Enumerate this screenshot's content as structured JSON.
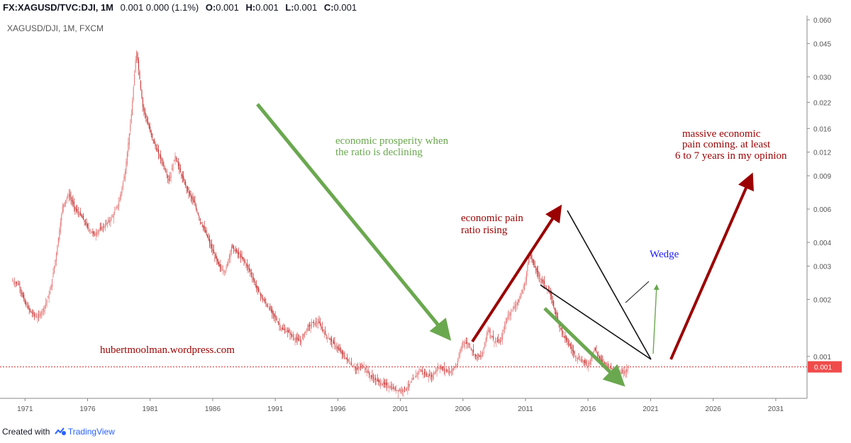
{
  "header": {
    "symbol": "FX:XAGUSD/TVC:DJI, 1M",
    "change": "0.001 0.000 (1.1%)",
    "open_label": "O:",
    "open_value": "0.001",
    "high_label": "H:",
    "high_value": "0.001",
    "low_label": "L:",
    "low_value": "0.001",
    "close_label": "C:",
    "close_value": "0.001"
  },
  "footer": {
    "created_with": "Created with",
    "brand": "TradingView"
  },
  "colors": {
    "candle_up": "#e57373",
    "candle_down": "#c62828",
    "price_line": "#d32f2f",
    "green_arrow": "#6aa84f",
    "red_arrow": "#9b0000",
    "wedge_line": "#111111",
    "wedge_label": "#1a1aff",
    "grid": "#eef0f3",
    "axis": "#888888",
    "axis_text": "#555555",
    "price_tag": "#f04b4b"
  },
  "chart_data": {
    "type": "candlestick",
    "title": "XAGUSD/DJI, 1M, FXCM",
    "scale": "log",
    "ylim": [
      0.0006,
      0.06
    ],
    "xlim": [
      1969.0,
      2033.5
    ],
    "y_ticks": [
      "0.060",
      "0.045",
      "0.030",
      "0.022",
      "0.016",
      "0.012",
      "0.009",
      "0.006",
      "0.004",
      "0.003",
      "0.002",
      "0.001"
    ],
    "x_ticks": [
      "1971",
      "1976",
      "1981",
      "1986",
      "1991",
      "1996",
      "2001",
      "2006",
      "2011",
      "2016",
      "2021",
      "2026",
      "2031"
    ],
    "last_price": "0.001",
    "last_price_value": 0.00088,
    "grid": false,
    "series": [
      {
        "points": [
          [
            1970.0,
            0.0025
          ],
          [
            1970.5,
            0.0024
          ],
          [
            1971.0,
            0.0019
          ],
          [
            1971.5,
            0.0017
          ],
          [
            1972.0,
            0.0016
          ],
          [
            1972.5,
            0.0018
          ],
          [
            1973.0,
            0.0022
          ],
          [
            1973.5,
            0.0035
          ],
          [
            1974.0,
            0.0062
          ],
          [
            1974.5,
            0.0072
          ],
          [
            1975.0,
            0.006
          ],
          [
            1975.5,
            0.0055
          ],
          [
            1976.0,
            0.0048
          ],
          [
            1976.5,
            0.0044
          ],
          [
            1977.0,
            0.0047
          ],
          [
            1977.5,
            0.005
          ],
          [
            1978.0,
            0.0055
          ],
          [
            1978.5,
            0.0065
          ],
          [
            1979.0,
            0.0095
          ],
          [
            1979.5,
            0.019
          ],
          [
            1979.9,
            0.042
          ],
          [
            1980.1,
            0.032
          ],
          [
            1980.4,
            0.021
          ],
          [
            1980.8,
            0.017
          ],
          [
            1981.2,
            0.014
          ],
          [
            1981.6,
            0.012
          ],
          [
            1982.0,
            0.0105
          ],
          [
            1982.5,
            0.0085
          ],
          [
            1983.0,
            0.0115
          ],
          [
            1983.5,
            0.009
          ],
          [
            1984.0,
            0.0075
          ],
          [
            1984.5,
            0.0065
          ],
          [
            1985.0,
            0.0052
          ],
          [
            1985.5,
            0.0044
          ],
          [
            1986.0,
            0.0036
          ],
          [
            1986.5,
            0.003
          ],
          [
            1987.0,
            0.0028
          ],
          [
            1987.5,
            0.0038
          ],
          [
            1988.0,
            0.0035
          ],
          [
            1988.5,
            0.0032
          ],
          [
            1989.0,
            0.0028
          ],
          [
            1989.5,
            0.0023
          ],
          [
            1990.0,
            0.002
          ],
          [
            1990.5,
            0.0018
          ],
          [
            1991.0,
            0.0016
          ],
          [
            1991.5,
            0.0014
          ],
          [
            1992.0,
            0.00135
          ],
          [
            1992.5,
            0.00125
          ],
          [
            1993.0,
            0.0012
          ],
          [
            1993.5,
            0.0014
          ],
          [
            1994.0,
            0.0015
          ],
          [
            1994.5,
            0.0015
          ],
          [
            1995.0,
            0.0013
          ],
          [
            1995.5,
            0.0012
          ],
          [
            1996.0,
            0.0011
          ],
          [
            1996.5,
            0.001
          ],
          [
            1997.0,
            0.00092
          ],
          [
            1997.5,
            0.00085
          ],
          [
            1998.0,
            0.0009
          ],
          [
            1998.5,
            0.0008
          ],
          [
            1999.0,
            0.00075
          ],
          [
            1999.5,
            0.00072
          ],
          [
            2000.0,
            0.0007
          ],
          [
            2000.5,
            0.00067
          ],
          [
            2001.0,
            0.00066
          ],
          [
            2001.5,
            0.00068
          ],
          [
            2002.0,
            0.00075
          ],
          [
            2002.5,
            0.00085
          ],
          [
            2003.0,
            0.0008
          ],
          [
            2003.5,
            0.00078
          ],
          [
            2004.0,
            0.00088
          ],
          [
            2004.5,
            0.00085
          ],
          [
            2005.0,
            0.00083
          ],
          [
            2005.5,
            0.0009
          ],
          [
            2006.0,
            0.0012
          ],
          [
            2006.5,
            0.00115
          ],
          [
            2007.0,
            0.001
          ],
          [
            2007.5,
            0.001
          ],
          [
            2008.0,
            0.0014
          ],
          [
            2008.5,
            0.0012
          ],
          [
            2009.0,
            0.0012
          ],
          [
            2009.5,
            0.0016
          ],
          [
            2010.0,
            0.0018
          ],
          [
            2010.5,
            0.002
          ],
          [
            2011.0,
            0.0025
          ],
          [
            2011.3,
            0.0036
          ],
          [
            2011.6,
            0.0031
          ],
          [
            2012.0,
            0.0027
          ],
          [
            2012.5,
            0.0024
          ],
          [
            2013.0,
            0.0021
          ],
          [
            2013.5,
            0.0016
          ],
          [
            2014.0,
            0.0013
          ],
          [
            2014.5,
            0.00115
          ],
          [
            2015.0,
            0.001
          ],
          [
            2015.5,
            0.00095
          ],
          [
            2016.0,
            0.0009
          ],
          [
            2016.5,
            0.0011
          ],
          [
            2017.0,
            0.00095
          ],
          [
            2017.5,
            0.0009
          ],
          [
            2018.0,
            0.00085
          ],
          [
            2018.5,
            0.00082
          ],
          [
            2019.0,
            0.00084
          ],
          [
            2019.3,
            0.00088
          ]
        ]
      }
    ],
    "annotations": {
      "watermark": "hubertmoolman.wordpress.com",
      "prosperity_l1": "economic prosperity when",
      "prosperity_l2": "the ratio is declining",
      "pain_l1": "economic pain",
      "pain_l2": "ratio rising",
      "massive_l1": "massive economic",
      "massive_l2": "pain coming. at least",
      "massive_l3": "6 to 7 years in my opinion",
      "wedge": "Wedge"
    }
  }
}
